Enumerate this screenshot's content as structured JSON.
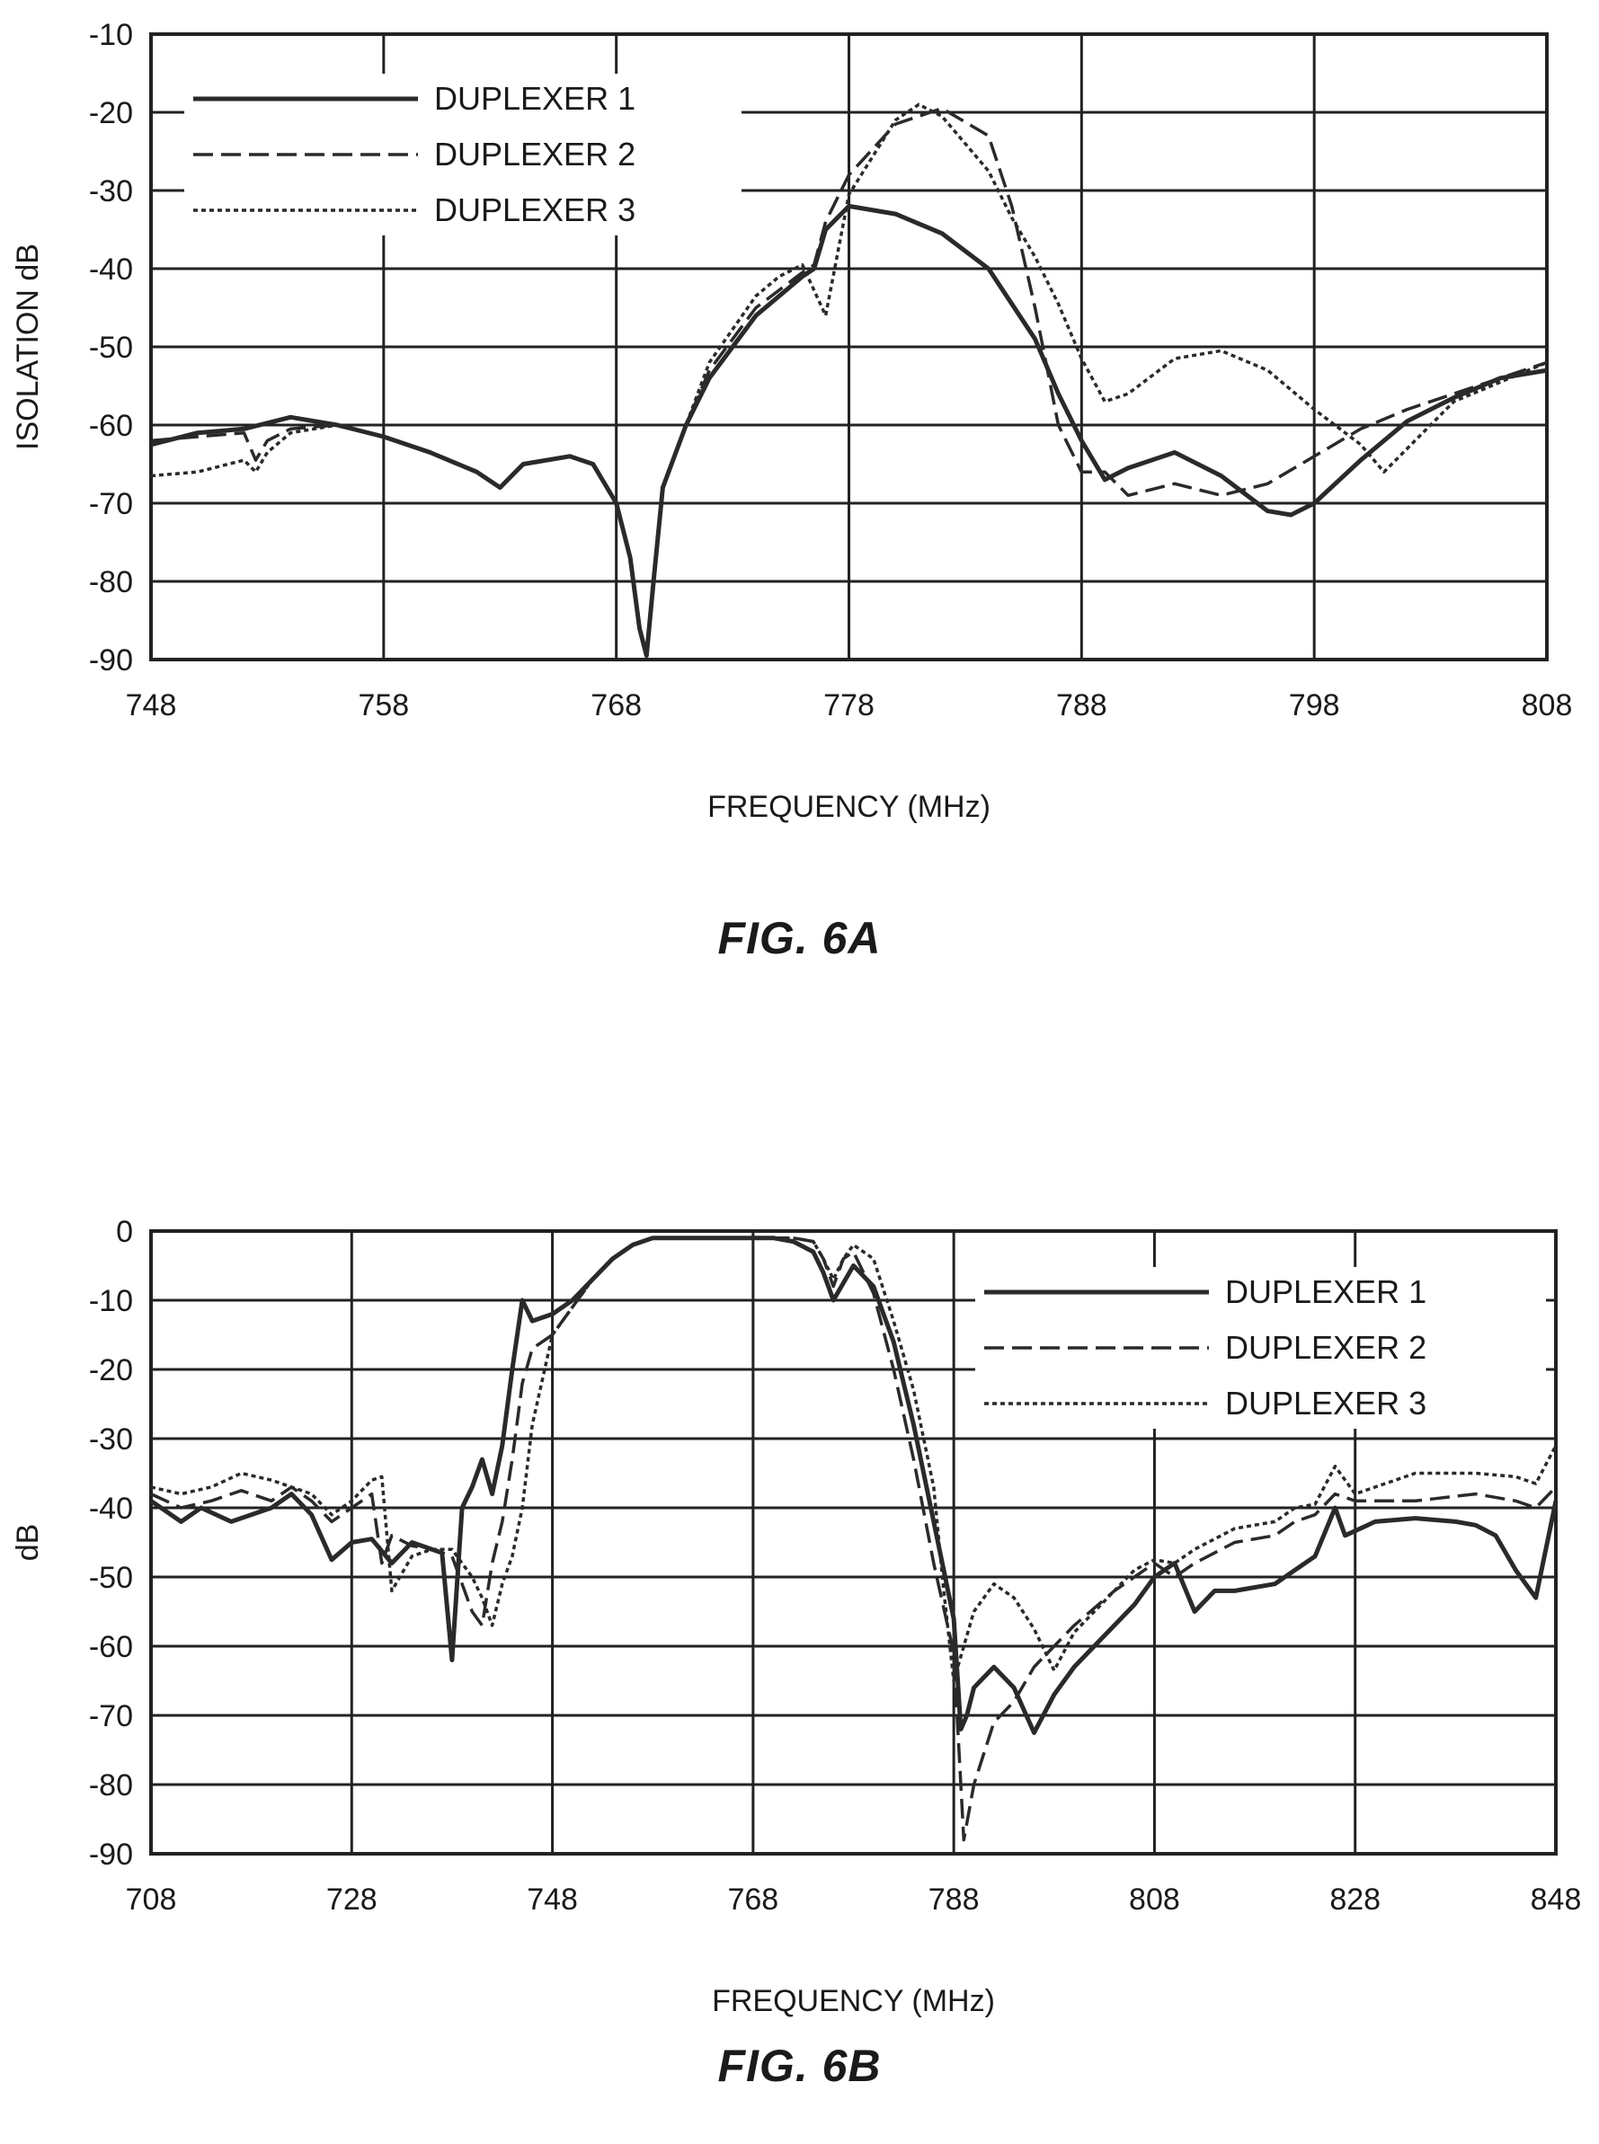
{
  "chart_data": [
    {
      "type": "line",
      "caption": "FIG. 6A",
      "xlabel": "FREQUENCY (MHz)",
      "ylabel": "ISOLATION dB",
      "xlim": [
        748,
        808
      ],
      "ylim": [
        -90,
        -10
      ],
      "xticks": [
        "748",
        "758",
        "768",
        "778",
        "788",
        "798",
        "808"
      ],
      "yticks": [
        "-10",
        "-20",
        "-30",
        "-40",
        "-50",
        "-60",
        "-70",
        "-80",
        "-90"
      ],
      "grid": true,
      "legend_position": "top-left",
      "series": [
        {
          "name": "DUPLEXER 1",
          "style": "solid",
          "x": [
            748,
            750,
            752,
            754,
            756,
            758,
            760,
            762,
            763,
            764,
            766,
            767,
            768,
            768.6,
            769,
            769.3,
            769.6,
            770,
            771,
            772,
            774,
            776,
            776.5,
            777,
            778,
            780,
            782,
            784,
            786,
            787,
            788,
            789,
            790,
            792,
            794,
            796,
            797,
            798,
            800,
            802,
            804,
            806,
            808
          ],
          "y": [
            -62.5,
            -61,
            -60.5,
            -59,
            -60,
            -61.5,
            -63.5,
            -66,
            -68,
            -65,
            -64,
            -65,
            -70,
            -77,
            -86,
            -89.5,
            -80,
            -68,
            -60,
            -54,
            -46,
            -41,
            -40,
            -35,
            -32,
            -33,
            -35.5,
            -40,
            -49,
            -56,
            -62,
            -67,
            -65.5,
            -63.5,
            -66.5,
            -71,
            -71.5,
            -70,
            -64.5,
            -59.5,
            -56.5,
            -54,
            -53
          ]
        },
        {
          "name": "DUPLEXER 2",
          "style": "dashed",
          "x": [
            748,
            750,
            752,
            752.5,
            753,
            754,
            756,
            758,
            760,
            762,
            763,
            764,
            766,
            767,
            768,
            768.6,
            769,
            769.3,
            769.6,
            770,
            771,
            772,
            774,
            776,
            776.5,
            777,
            778,
            780,
            782,
            784,
            785,
            786,
            787,
            788,
            789,
            790,
            792,
            794,
            796,
            798,
            800,
            802,
            804,
            806,
            808
          ],
          "y": [
            -62,
            -61.5,
            -61,
            -64.5,
            -62,
            -60.5,
            -60,
            -61.5,
            -63.5,
            -66,
            -68,
            -65,
            -64,
            -65,
            -70,
            -77,
            -86,
            -89.5,
            -80,
            -68,
            -60,
            -53,
            -45,
            -40.5,
            -39.5,
            -34,
            -28,
            -21.5,
            -19.5,
            -23,
            -32,
            -45,
            -60,
            -66,
            -66,
            -69,
            -67.5,
            -69,
            -67.5,
            -64,
            -60.5,
            -58,
            -56,
            -54,
            -52
          ]
        },
        {
          "name": "DUPLEXER 3",
          "style": "dotted",
          "x": [
            748,
            750,
            752,
            752.5,
            753,
            754,
            756,
            758,
            760,
            762,
            763,
            764,
            766,
            767,
            768,
            768.6,
            769,
            769.3,
            769.6,
            770,
            771,
            772,
            774,
            775,
            776,
            777,
            778,
            780,
            781,
            782,
            784,
            785,
            786,
            787,
            788,
            789,
            790,
            792,
            794,
            796,
            798,
            800,
            801,
            802,
            804,
            806,
            808
          ],
          "y": [
            -66.5,
            -66,
            -64.5,
            -66,
            -63.5,
            -61,
            -60,
            -61.5,
            -63.5,
            -66,
            -68,
            -65,
            -64,
            -65,
            -70,
            -77,
            -86,
            -89.5,
            -80,
            -68,
            -60,
            -52,
            -43.5,
            -41,
            -39.5,
            -46,
            -30.5,
            -21,
            -19,
            -20.5,
            -27.5,
            -33.5,
            -38.5,
            -44.5,
            -51.5,
            -57,
            -56,
            -51.5,
            -50.5,
            -53,
            -58,
            -62.5,
            -66,
            -63,
            -57,
            -54.5,
            -52
          ]
        }
      ]
    },
    {
      "type": "line",
      "caption": "FIG. 6B",
      "xlabel": "FREQUENCY (MHz)",
      "ylabel": "dB",
      "xlim": [
        708,
        848
      ],
      "ylim": [
        -90,
        0
      ],
      "xticks": [
        "708",
        "728",
        "748",
        "768",
        "788",
        "808",
        "828",
        "848"
      ],
      "yticks": [
        "0",
        "-10",
        "-20",
        "-30",
        "-40",
        "-50",
        "-60",
        "-70",
        "-80",
        "-90"
      ],
      "grid": true,
      "legend_position": "top-right",
      "series": [
        {
          "name": "DUPLEXER 1",
          "style": "solid",
          "x": [
            708,
            711,
            713,
            716,
            720,
            722,
            724,
            726,
            728,
            730,
            732,
            734,
            736,
            737,
            738,
            739,
            740,
            741,
            742,
            743,
            744,
            745,
            746,
            748,
            750,
            752,
            754,
            756,
            758,
            760,
            762,
            764,
            766,
            768,
            770,
            772,
            774,
            775,
            776,
            778,
            780,
            782,
            784,
            786,
            788,
            788.7,
            789.3,
            790,
            792,
            794,
            796,
            798,
            800,
            802,
            806,
            808,
            810,
            812,
            814,
            816,
            820,
            822,
            824,
            826,
            827,
            830,
            834,
            838,
            840,
            842,
            844,
            846,
            848
          ],
          "y": [
            -39,
            -42,
            -40,
            -42,
            -40,
            -38,
            -41,
            -47.5,
            -45,
            -44.5,
            -48,
            -45,
            -46,
            -46.5,
            -62,
            -40,
            -37,
            -33,
            -38,
            -31,
            -20,
            -10,
            -13,
            -12,
            -10,
            -7,
            -4,
            -2,
            -1,
            -1,
            -1,
            -1,
            -1,
            -1,
            -1,
            -1.5,
            -3,
            -6,
            -10,
            -5,
            -8,
            -16,
            -28,
            -42,
            -56,
            -72,
            -70,
            -66,
            -63,
            -66,
            -72.5,
            -67,
            -63,
            -60,
            -54,
            -50,
            -48,
            -55,
            -52,
            -52,
            -51,
            -49,
            -47,
            -40,
            -44,
            -42,
            -41.5,
            -42,
            -42.5,
            -44,
            -49,
            -53,
            -39
          ]
        },
        {
          "name": "DUPLEXER 2",
          "style": "dashed",
          "x": [
            708,
            711,
            714,
            717,
            720,
            722,
            724,
            726,
            728,
            730,
            731,
            732,
            734,
            736,
            738,
            739,
            740,
            741,
            742,
            743,
            744,
            745,
            746,
            748,
            750,
            752,
            754,
            756,
            758,
            760,
            762,
            764,
            766,
            768,
            770,
            772,
            774,
            775,
            776,
            777,
            778,
            780,
            782,
            784,
            786,
            788,
            789,
            790,
            792,
            794,
            796,
            798,
            800,
            804,
            806,
            808,
            810,
            812,
            816,
            820,
            822,
            824,
            826,
            828,
            830,
            834,
            840,
            844,
            846,
            848
          ],
          "y": [
            -38,
            -40,
            -39,
            -37.5,
            -39,
            -37,
            -39,
            -42,
            -40,
            -38,
            -48,
            -44,
            -45.5,
            -46,
            -47,
            -51,
            -55,
            -57,
            -48,
            -42,
            -33,
            -22,
            -17,
            -15,
            -11,
            -7,
            -4,
            -2,
            -1,
            -1,
            -1,
            -1,
            -1,
            -1,
            -1,
            -1,
            -1.5,
            -4,
            -8,
            -4,
            -3,
            -9,
            -20,
            -33,
            -48,
            -61,
            -88,
            -80,
            -71,
            -68,
            -63,
            -60,
            -57,
            -52,
            -50,
            -48,
            -50,
            -48,
            -45,
            -44,
            -42,
            -41,
            -38,
            -39,
            -39,
            -39,
            -38,
            -39,
            -40,
            -37
          ]
        },
        {
          "name": "DUPLEXER 3",
          "style": "dotted",
          "x": [
            708,
            711,
            714,
            717,
            720,
            722,
            724,
            726,
            728,
            730,
            731,
            732,
            734,
            736,
            738,
            740,
            741,
            742,
            743,
            744,
            745,
            746,
            748,
            750,
            752,
            754,
            756,
            758,
            760,
            762,
            764,
            766,
            768,
            770,
            772,
            774,
            775,
            776,
            777,
            778,
            780,
            782,
            784,
            786,
            787,
            788,
            790,
            792,
            794,
            796,
            798,
            800,
            804,
            806,
            808,
            810,
            812,
            816,
            820,
            822,
            824,
            826,
            828,
            830,
            834,
            840,
            844,
            846,
            848
          ],
          "y": [
            -37,
            -38,
            -37,
            -35,
            -36,
            -37,
            -38,
            -41,
            -39,
            -36,
            -35.5,
            -52,
            -47,
            -46,
            -46,
            -50,
            -53,
            -57,
            -51,
            -47,
            -40,
            -28,
            -15,
            -11,
            -7,
            -4,
            -2,
            -1,
            -1,
            -1,
            -1,
            -1,
            -1,
            -1,
            -1,
            -1.5,
            -4,
            -7,
            -4,
            -2,
            -4,
            -13,
            -23,
            -37,
            -52,
            -65,
            -55,
            -51,
            -53,
            -57.5,
            -63.5,
            -58,
            -52,
            -49,
            -47.5,
            -48,
            -46,
            -43,
            -42,
            -40,
            -39.5,
            -34,
            -38,
            -37,
            -35,
            -35,
            -35.5,
            -36.5,
            -31
          ]
        }
      ]
    }
  ]
}
